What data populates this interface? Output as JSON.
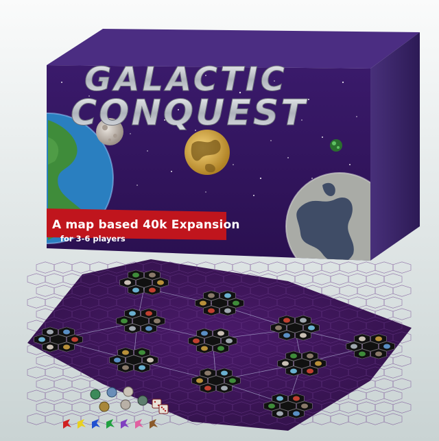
{
  "box": {
    "title_line1": "GALACTIC",
    "title_line2": "CONQUEST",
    "tagline": "A map based 40k Expansion",
    "subtitle": "for 3-6 players"
  },
  "colors": {
    "box_purple": "#3d1a6e",
    "banner_red": "#c0151d",
    "title_silver": "#c8ccd2",
    "board_purple": "#3a1553"
  },
  "components": {
    "dice": [
      "die-1",
      "die-2"
    ],
    "tokens": [
      "token-1",
      "token-2",
      "token-3",
      "token-4",
      "token-5",
      "token-6"
    ],
    "markers": [
      "red",
      "yellow",
      "blue",
      "green",
      "purple",
      "pink",
      "brown"
    ]
  }
}
